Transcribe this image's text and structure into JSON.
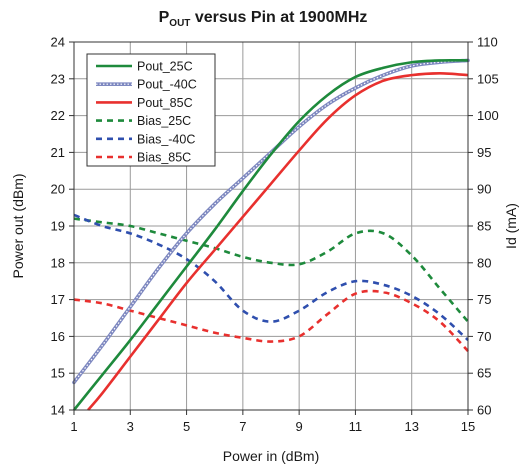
{
  "chart_data": {
    "type": "line",
    "title": {
      "main": "P",
      "sub": "OUT",
      "rest": " versus Pin at 1900MHz"
    },
    "xlabel": "Power in (dBm)",
    "ylabel_left": "Power out (dBm)",
    "ylabel_right": "Id (mA)",
    "xlim": [
      1,
      15
    ],
    "ylim_left": [
      14,
      24
    ],
    "ylim_right": [
      60,
      110
    ],
    "x_ticks": [
      "1",
      "3",
      "5",
      "7",
      "9",
      "11",
      "13",
      "15"
    ],
    "x_tick_values": [
      1,
      3,
      5,
      7,
      9,
      11,
      13,
      15
    ],
    "y_left_ticks": [
      "14",
      "15",
      "16",
      "17",
      "18",
      "19",
      "20",
      "21",
      "22",
      "23",
      "24"
    ],
    "y_left_tick_values": [
      14,
      15,
      16,
      17,
      18,
      19,
      20,
      21,
      22,
      23,
      24
    ],
    "y_right_ticks": [
      "60",
      "65",
      "70",
      "75",
      "80",
      "85",
      "90",
      "95",
      "100",
      "105",
      "110"
    ],
    "y_right_tick_values": [
      60,
      65,
      70,
      75,
      80,
      85,
      90,
      95,
      100,
      105,
      110
    ],
    "grid": true,
    "legend_position": "top-left",
    "series": [
      {
        "name": "Pout_25C",
        "axis": "left",
        "color": "#1e8a3c",
        "style": "solid",
        "x": [
          1,
          2,
          3,
          4,
          5,
          6,
          7,
          8,
          9,
          10,
          11,
          12,
          13,
          14,
          15
        ],
        "y": [
          14.0,
          14.95,
          15.9,
          16.9,
          17.9,
          18.9,
          19.95,
          20.95,
          21.85,
          22.55,
          23.05,
          23.3,
          23.45,
          23.5,
          23.5
        ]
      },
      {
        "name": "Pout_-40C",
        "axis": "left",
        "color": "#7e88c0",
        "style": "hatched",
        "x": [
          1,
          2,
          3,
          4,
          5,
          6,
          7,
          8,
          9,
          10,
          11,
          12,
          13,
          14,
          15
        ],
        "y": [
          14.75,
          15.75,
          16.8,
          17.85,
          18.8,
          19.6,
          20.3,
          21.0,
          21.7,
          22.3,
          22.75,
          23.1,
          23.35,
          23.45,
          23.5
        ]
      },
      {
        "name": "Pout_85C",
        "axis": "left",
        "color": "#e8302e",
        "style": "solid",
        "x": [
          1.5,
          2,
          3,
          4,
          5,
          6,
          7,
          8,
          9,
          10,
          11,
          12,
          13,
          14,
          15
        ],
        "y": [
          14.0,
          14.45,
          15.45,
          16.45,
          17.45,
          18.35,
          19.25,
          20.15,
          21.05,
          21.9,
          22.55,
          22.95,
          23.1,
          23.15,
          23.1
        ]
      },
      {
        "name": "Bias_25C",
        "axis": "right",
        "color": "#1e8a3c",
        "style": "dashed",
        "x": [
          1,
          2,
          3,
          4,
          5,
          6,
          7,
          8,
          9,
          10,
          11,
          12,
          13,
          14,
          15
        ],
        "y": [
          86.0,
          85.5,
          85.0,
          84.0,
          83.0,
          82.0,
          80.8,
          80.0,
          79.8,
          81.5,
          84.0,
          84.0,
          81.0,
          76.5,
          72.0
        ]
      },
      {
        "name": "Bias_-40C",
        "axis": "right",
        "color": "#2f4fae",
        "style": "dashed",
        "x": [
          1,
          2,
          3,
          4,
          5,
          6,
          7,
          8,
          9,
          10,
          11,
          12,
          13,
          14,
          15
        ],
        "y": [
          86.5,
          85.0,
          84.0,
          82.5,
          80.5,
          77.5,
          73.5,
          72.0,
          73.5,
          76.0,
          77.5,
          77.0,
          75.5,
          73.0,
          69.5
        ]
      },
      {
        "name": "Bias_85C",
        "axis": "right",
        "color": "#e8302e",
        "style": "dashed",
        "x": [
          1,
          2,
          3,
          4,
          5,
          6,
          7,
          8,
          9,
          10,
          11,
          12,
          13,
          14,
          15
        ],
        "y": [
          75.0,
          74.5,
          73.5,
          72.5,
          71.5,
          70.5,
          69.8,
          69.3,
          70.0,
          73.0,
          75.8,
          76.0,
          74.5,
          72.0,
          68.0
        ]
      }
    ]
  }
}
